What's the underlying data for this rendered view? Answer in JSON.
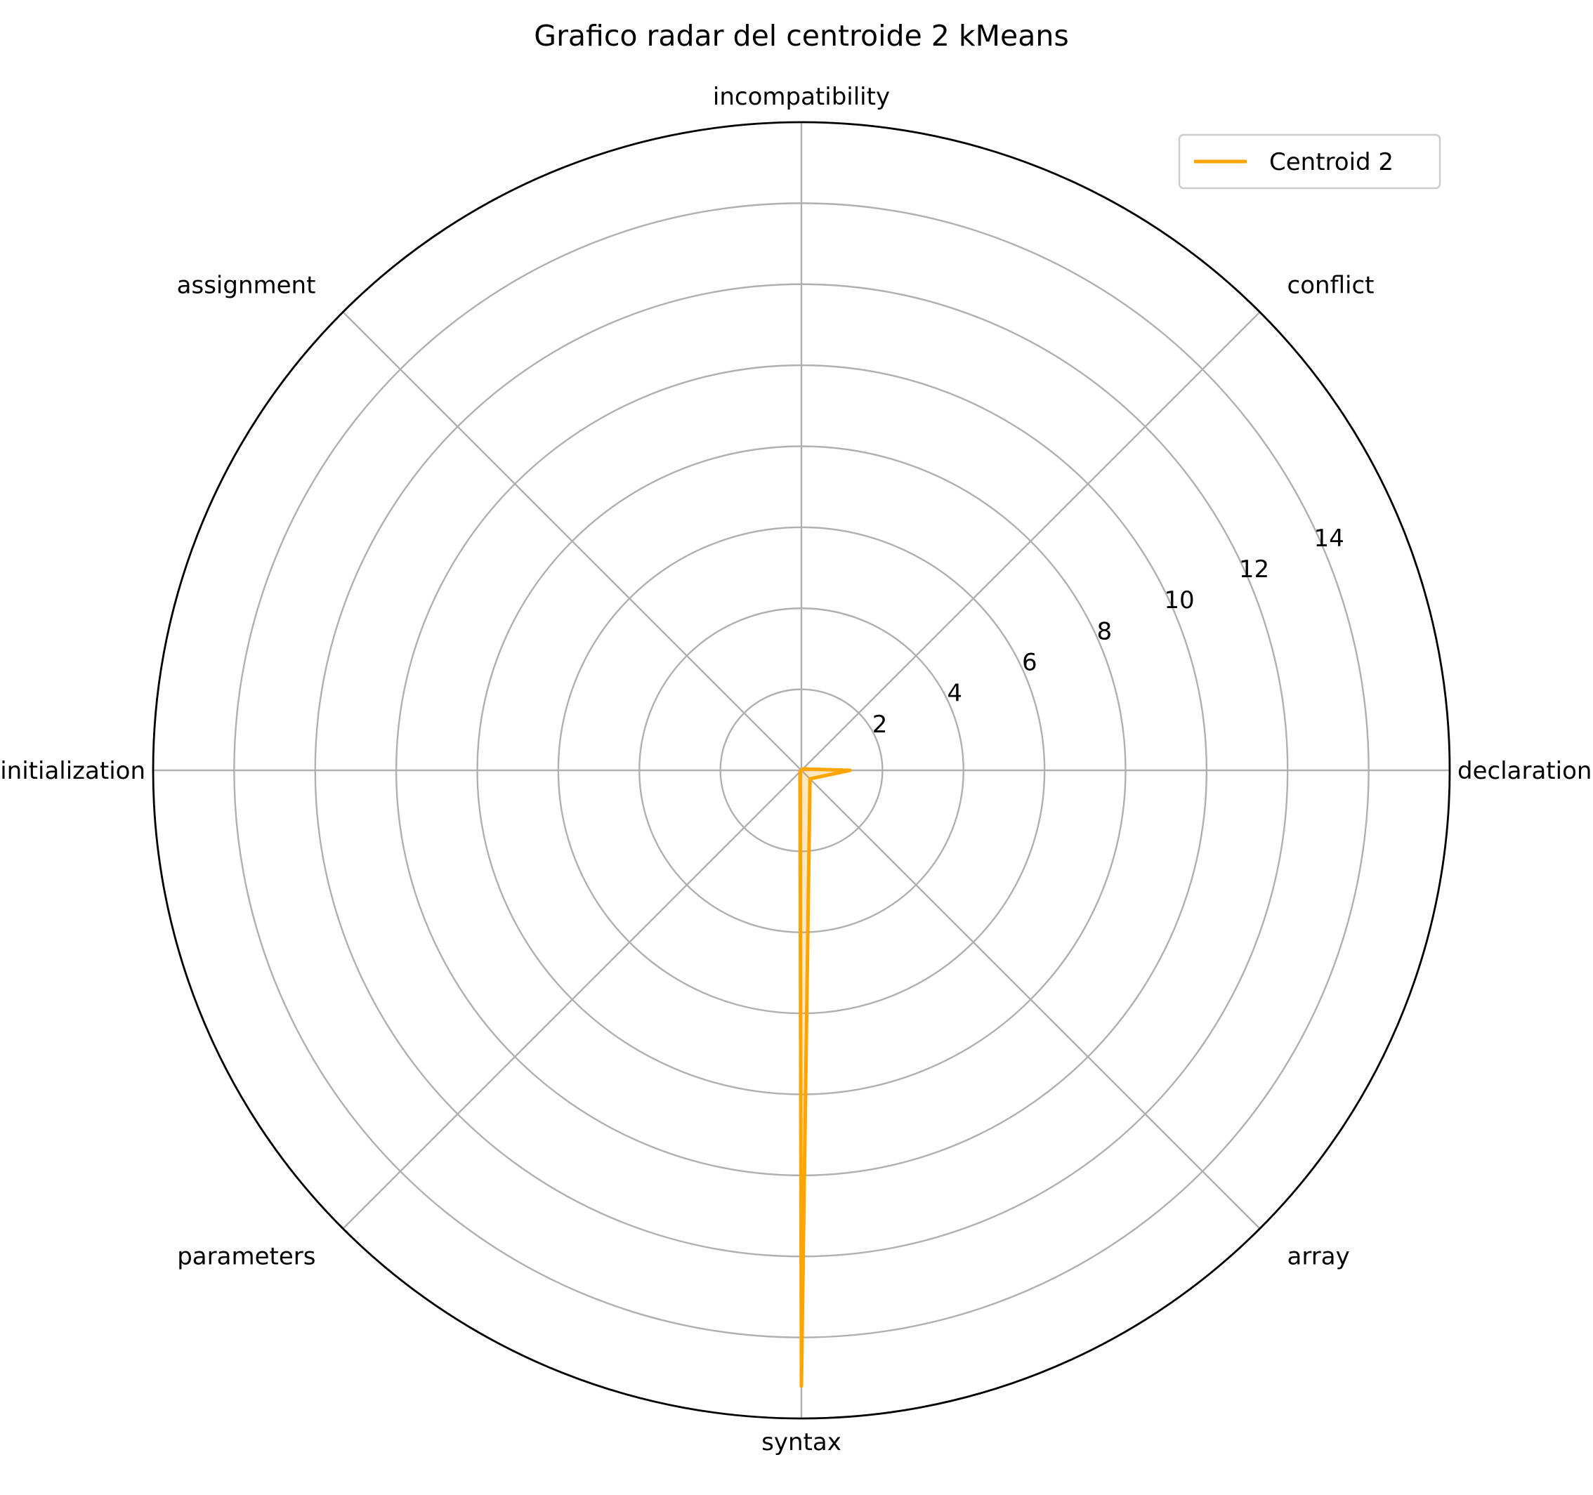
{
  "chart_data": {
    "type": "radar",
    "title": "Grafico radar del centroide 2 kMeans",
    "categories": [
      "declaration",
      "conflict",
      "incompatibility",
      "assignment",
      "initialization",
      "parameters",
      "syntax",
      "array"
    ],
    "series": [
      {
        "name": "Centroid 2",
        "color": "#FFA500",
        "fill_color": "#FFA500",
        "fill_opacity": 0.25,
        "values": [
          1.2,
          0.05,
          0.0,
          0.0,
          0.0,
          0.05,
          15.2,
          0.3
        ]
      }
    ],
    "rlim": [
      0,
      16
    ],
    "r_ticks": [
      2,
      4,
      6,
      8,
      10,
      12,
      14
    ],
    "r_tick_labels": [
      "2",
      "4",
      "6",
      "8",
      "10",
      "12",
      "14"
    ],
    "grid": true,
    "legend": "top-right"
  }
}
